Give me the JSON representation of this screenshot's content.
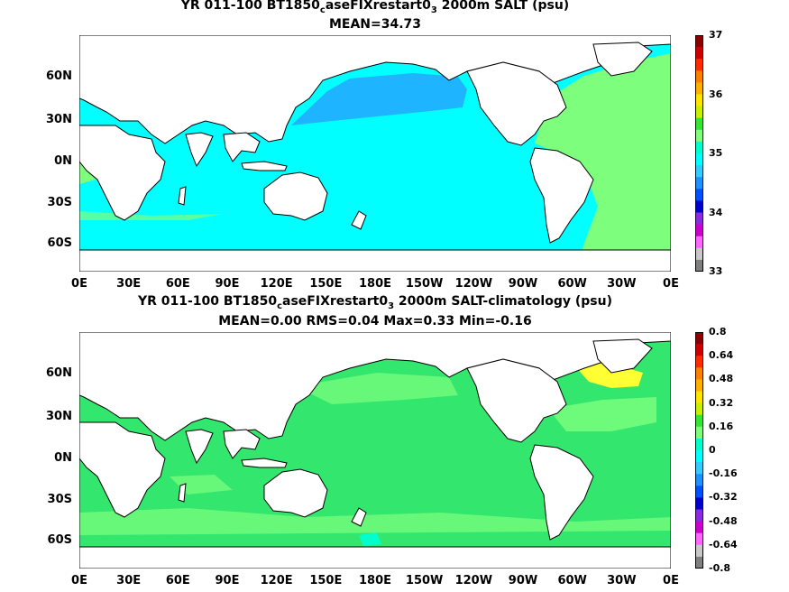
{
  "panels": [
    {
      "title_prefix": "YR 011-100 BT1850",
      "title_sub1": "c",
      "title_mid": "aseFIXrestart0",
      "title_sub2": "3",
      "title_suffix": " 2000m SALT (psu)",
      "stats": "MEAN=34.73"
    },
    {
      "title_prefix": "YR 011-100 BT1850",
      "title_sub1": "c",
      "title_mid": "aseFIXrestart0",
      "title_sub2": "3",
      "title_suffix": " 2000m SALT-climatology (psu)",
      "stats": "MEAN=0.00   RMS=0.04   Max=0.33   Min=-0.16"
    }
  ],
  "axes": {
    "lat_labels": [
      "60N",
      "30N",
      "0N",
      "30S",
      "60S"
    ],
    "lon_labels": [
      "0E",
      "30E",
      "60E",
      "90E",
      "120E",
      "150E",
      "180E",
      "150W",
      "120W",
      "90W",
      "60W",
      "30W",
      "0E"
    ]
  },
  "colorbars": [
    {
      "labels": [
        "37",
        "36",
        "35",
        "34",
        "33"
      ],
      "colors": [
        "#8b0000",
        "#cc0000",
        "#ff2a00",
        "#ff7f00",
        "#ffb000",
        "#ffe600",
        "#c8f000",
        "#33e633",
        "#7dff7d",
        "#00ffcc",
        "#00ffff",
        "#33ccff",
        "#1e90ff",
        "#0050ff",
        "#0000cc",
        "#8a2be2",
        "#cc00cc",
        "#ff66ff",
        "#c8c8c8",
        "#7f7f7f"
      ]
    },
    {
      "labels": [
        "0.8",
        "0.64",
        "0.48",
        "0.32",
        "0.16",
        "0",
        "-0.16",
        "-0.32",
        "-0.48",
        "-0.64",
        "-0.8"
      ],
      "colors": [
        "#8b0000",
        "#cc0000",
        "#ff2a00",
        "#ff7f00",
        "#ffb000",
        "#ffe600",
        "#c8f000",
        "#33e633",
        "#7dff7d",
        "#00ffcc",
        "#00ffff",
        "#33ccff",
        "#1e90ff",
        "#0050ff",
        "#0000cc",
        "#8a2be2",
        "#cc00cc",
        "#ff66ff",
        "#c8c8c8",
        "#7f7f7f"
      ]
    }
  ],
  "map_colors": {
    "land": "#ffffff",
    "coast": "#000000",
    "p1_main": "#00ffff",
    "p1_north_pacific": "#1eb4ff",
    "p1_atlantic": "#7dff7d",
    "p2_main": "#33e66e",
    "p2_secondary": "#7dff7d",
    "p2_high": "#ffff33",
    "p2_low": "#00ffcc"
  }
}
